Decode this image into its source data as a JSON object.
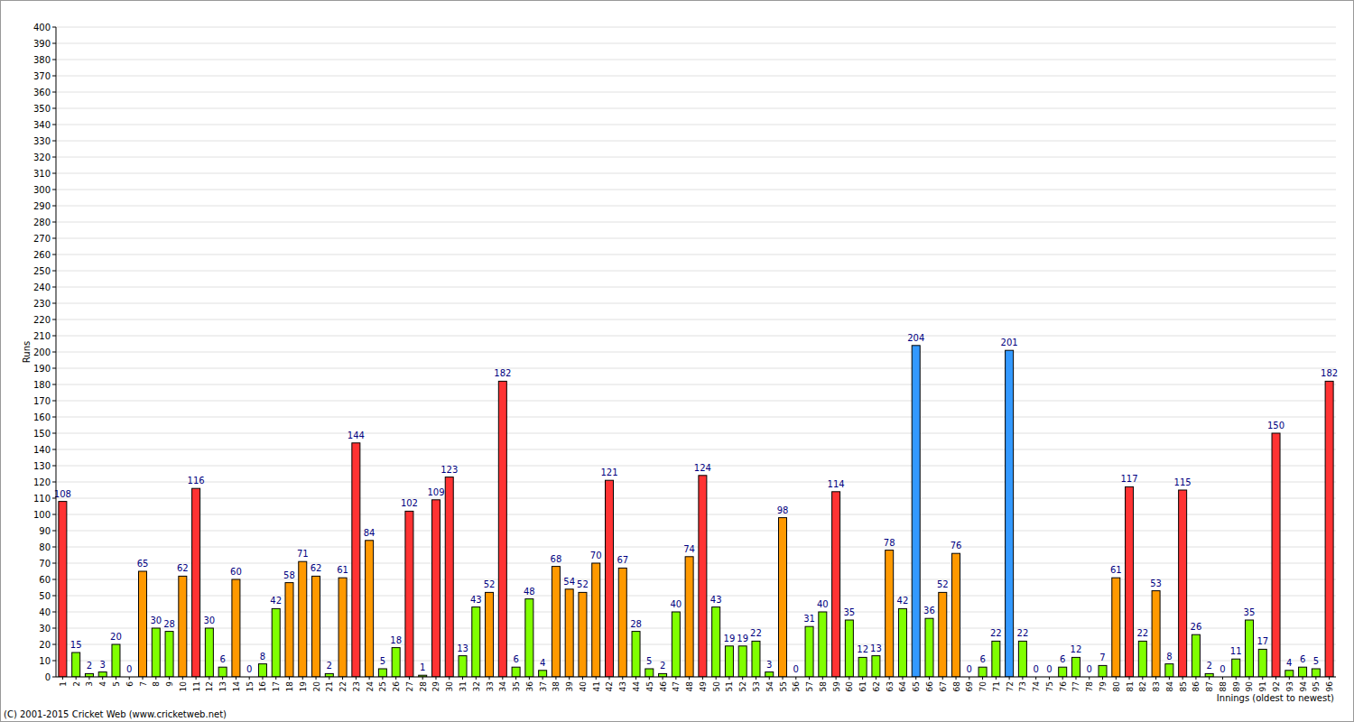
{
  "chart_data": {
    "type": "bar",
    "x_label": "Innings (oldest to newest)",
    "y_label": "Runs",
    "annotations": [
      "(C) 2001-2015 Cricket Web (www.cricketweb.net)"
    ],
    "categories": [
      "1",
      "2",
      "3",
      "4",
      "5",
      "6",
      "7",
      "8",
      "9",
      "10",
      "11",
      "12",
      "13",
      "14",
      "15",
      "16",
      "17",
      "18",
      "19",
      "20",
      "21",
      "22",
      "23",
      "24",
      "25",
      "26",
      "27",
      "28",
      "29",
      "30",
      "31",
      "32",
      "33",
      "34",
      "35",
      "36",
      "37",
      "38",
      "39",
      "40",
      "41",
      "42",
      "43",
      "44",
      "45",
      "46",
      "47",
      "48",
      "49",
      "50",
      "51",
      "52",
      "53",
      "54",
      "55",
      "56",
      "57",
      "58",
      "59",
      "60",
      "61",
      "62",
      "63",
      "64",
      "65",
      "66",
      "67",
      "68",
      "69",
      "70",
      "71",
      "72",
      "73",
      "74",
      "75",
      "76",
      "77",
      "78",
      "79",
      "80",
      "81",
      "82",
      "83",
      "84",
      "85",
      "86",
      "87",
      "88",
      "89",
      "90",
      "91",
      "92",
      "93",
      "94",
      "95",
      "96"
    ],
    "values": [
      108,
      15,
      2,
      3,
      20,
      0,
      65,
      30,
      28,
      62,
      116,
      30,
      6,
      60,
      0,
      8,
      42,
      58,
      71,
      62,
      2,
      61,
      144,
      84,
      5,
      18,
      102,
      1,
      109,
      123,
      13,
      43,
      52,
      182,
      6,
      48,
      4,
      68,
      54,
      52,
      70,
      121,
      67,
      28,
      5,
      2,
      40,
      74,
      124,
      43,
      19,
      19,
      22,
      3,
      98,
      0,
      31,
      40,
      114,
      35,
      12,
      13,
      78,
      42,
      204,
      36,
      52,
      76,
      0,
      6,
      22,
      201,
      22,
      0,
      0,
      6,
      12,
      0,
      7,
      61,
      117,
      22,
      53,
      8,
      115,
      26,
      2,
      0,
      11,
      35,
      17,
      150,
      4,
      6,
      5,
      182
    ],
    "colors": [
      "#ff3333",
      "#80ff00",
      "#80ff00",
      "#80ff00",
      "#80ff00",
      "#80ff00",
      "#ff9900",
      "#80ff00",
      "#80ff00",
      "#ff9900",
      "#ff3333",
      "#80ff00",
      "#80ff00",
      "#ff9900",
      "#80ff00",
      "#80ff00",
      "#80ff00",
      "#ff9900",
      "#ff9900",
      "#ff9900",
      "#80ff00",
      "#ff9900",
      "#ff3333",
      "#ff9900",
      "#80ff00",
      "#80ff00",
      "#ff3333",
      "#80ff00",
      "#ff3333",
      "#ff3333",
      "#80ff00",
      "#80ff00",
      "#ff9900",
      "#ff3333",
      "#80ff00",
      "#80ff00",
      "#80ff00",
      "#ff9900",
      "#ff9900",
      "#ff9900",
      "#ff9900",
      "#ff3333",
      "#ff9900",
      "#80ff00",
      "#80ff00",
      "#80ff00",
      "#80ff00",
      "#ff9900",
      "#ff3333",
      "#80ff00",
      "#80ff00",
      "#80ff00",
      "#80ff00",
      "#80ff00",
      "#ff9900",
      "#80ff00",
      "#80ff00",
      "#80ff00",
      "#ff3333",
      "#80ff00",
      "#80ff00",
      "#80ff00",
      "#ff9900",
      "#80ff00",
      "#3399ff",
      "#80ff00",
      "#ff9900",
      "#ff9900",
      "#80ff00",
      "#80ff00",
      "#80ff00",
      "#3399ff",
      "#80ff00",
      "#80ff00",
      "#80ff00",
      "#80ff00",
      "#80ff00",
      "#80ff00",
      "#80ff00",
      "#ff9900",
      "#ff3333",
      "#80ff00",
      "#ff9900",
      "#80ff00",
      "#ff3333",
      "#80ff00",
      "#80ff00",
      "#80ff00",
      "#80ff00",
      "#80ff00",
      "#80ff00",
      "#ff3333",
      "#80ff00",
      "#80ff00",
      "#80ff00",
      "#ff3333"
    ],
    "ylim": [
      0,
      400
    ],
    "yticks": [
      0,
      10,
      20,
      30,
      40,
      50,
      60,
      70,
      80,
      90,
      100,
      110,
      120,
      130,
      140,
      150,
      160,
      170,
      180,
      190,
      200,
      210,
      220,
      230,
      240,
      250,
      260,
      270,
      280,
      290,
      300,
      310,
      320,
      330,
      340,
      350,
      360,
      370,
      380,
      390,
      400
    ],
    "grid": true,
    "data_labels": true
  }
}
